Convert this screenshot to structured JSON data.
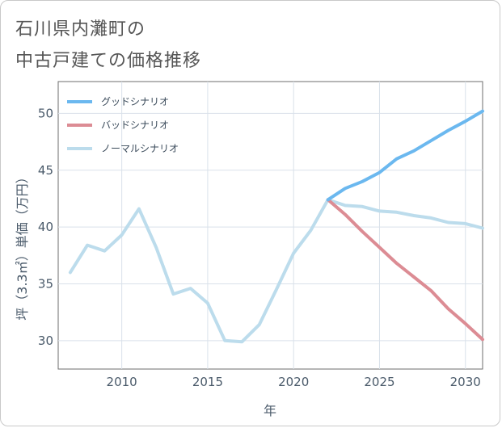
{
  "title_line1": "石川県内灘町の",
  "title_line2": "中古戸建ての価格推移",
  "chart_data": {
    "type": "line",
    "xlabel": "年",
    "ylabel": "坪（3.3㎡）単価（万円）",
    "xlim": [
      2006.3,
      2031.0
    ],
    "ylim": [
      27.5,
      52.8
    ],
    "xticks": [
      2010,
      2015,
      2020,
      2025,
      2030
    ],
    "yticks": [
      30,
      35,
      40,
      45,
      50
    ],
    "xtick_labels": [
      "2010",
      "2015",
      "2020",
      "2025",
      "2030"
    ],
    "ytick_labels": [
      "30",
      "35",
      "40",
      "45",
      "50"
    ],
    "grid": true,
    "legend_position": "top-left",
    "series": [
      {
        "name": "グッドシナリオ",
        "color": "#6bb8ef",
        "x": [
          2022,
          2023,
          2024,
          2025,
          2026,
          2027,
          2028,
          2029,
          2030,
          2031
        ],
        "y": [
          42.4,
          43.4,
          44.0,
          44.8,
          46.0,
          46.7,
          47.6,
          48.5,
          49.3,
          50.2
        ]
      },
      {
        "name": "バッドシナリオ",
        "color": "#dc8c94",
        "x": [
          2022,
          2023,
          2024,
          2025,
          2026,
          2027,
          2028,
          2029,
          2030,
          2031
        ],
        "y": [
          42.4,
          41.1,
          39.6,
          38.2,
          36.8,
          35.6,
          34.4,
          32.8,
          31.5,
          30.1
        ]
      },
      {
        "name": "ノーマルシナリオ",
        "color": "#bcdcec",
        "x": [
          2007,
          2008,
          2009,
          2010,
          2011,
          2012,
          2013,
          2014,
          2015,
          2016,
          2017,
          2018,
          2019,
          2020,
          2021,
          2022,
          2023,
          2024,
          2025,
          2026,
          2027,
          2028,
          2029,
          2030,
          2031
        ],
        "y": [
          36.0,
          38.4,
          37.9,
          39.3,
          41.6,
          38.2,
          34.1,
          34.6,
          33.3,
          30.0,
          29.9,
          31.4,
          34.5,
          37.7,
          39.7,
          42.4,
          41.9,
          41.8,
          41.4,
          41.3,
          41.0,
          40.8,
          40.4,
          40.3,
          39.9
        ]
      }
    ]
  }
}
